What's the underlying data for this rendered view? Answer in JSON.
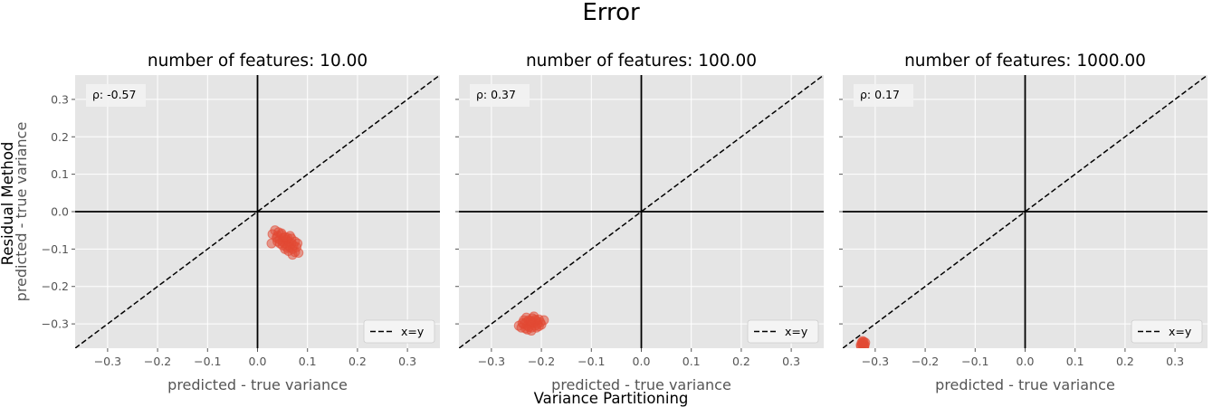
{
  "figure": {
    "title": "Error",
    "supxlabel": "Variance Partitioning",
    "supylabel": "Residual Method"
  },
  "chart_data": [
    {
      "type": "scatter",
      "title": "number of features: 10.00",
      "xlabel": "predicted - true variance",
      "ylabel": "predicted - true variance",
      "xlim": [
        -0.365,
        0.365
      ],
      "ylim": [
        -0.365,
        0.365
      ],
      "xticks": [
        -0.3,
        -0.2,
        -0.1,
        0.0,
        0.1,
        0.2,
        0.3
      ],
      "yticks": [
        -0.3,
        -0.2,
        -0.1,
        0.0,
        0.1,
        0.2,
        0.3
      ],
      "xtick_labels": [
        "−0.3",
        "−0.2",
        "−0.1",
        "0.0",
        "0.1",
        "0.2",
        "0.3"
      ],
      "ytick_labels": [
        "−0.3",
        "−0.2",
        "−0.1",
        "0.0",
        "0.1",
        "0.2",
        "0.3"
      ],
      "annotation": "ρ: -0.57",
      "legend": [
        "x=y"
      ],
      "legend_position": "lower-right",
      "grid": true,
      "point_color": "#E24A33",
      "points": [
        [
          0.03,
          -0.06
        ],
        [
          0.035,
          -0.05
        ],
        [
          0.038,
          -0.07
        ],
        [
          0.04,
          -0.065
        ],
        [
          0.042,
          -0.055
        ],
        [
          0.045,
          -0.075
        ],
        [
          0.048,
          -0.062
        ],
        [
          0.05,
          -0.08
        ],
        [
          0.052,
          -0.07
        ],
        [
          0.055,
          -0.085
        ],
        [
          0.058,
          -0.075
        ],
        [
          0.06,
          -0.09
        ],
        [
          0.062,
          -0.08
        ],
        [
          0.065,
          -0.095
        ],
        [
          0.068,
          -0.085
        ],
        [
          0.07,
          -0.1
        ],
        [
          0.072,
          -0.09
        ],
        [
          0.075,
          -0.08
        ],
        [
          0.078,
          -0.095
        ],
        [
          0.08,
          -0.085
        ],
        [
          0.07,
          -0.115
        ],
        [
          0.075,
          -0.108
        ],
        [
          0.055,
          -0.1
        ],
        [
          0.05,
          -0.09
        ],
        [
          0.045,
          -0.085
        ],
        [
          0.04,
          -0.08
        ],
        [
          0.06,
          -0.07
        ],
        [
          0.065,
          -0.065
        ],
        [
          0.048,
          -0.058
        ],
        [
          0.055,
          -0.068
        ],
        [
          0.062,
          -0.105
        ],
        [
          0.082,
          -0.11
        ],
        [
          0.028,
          -0.085
        ],
        [
          0.058,
          -0.095
        ],
        [
          0.068,
          -0.072
        ]
      ]
    },
    {
      "type": "scatter",
      "title": "number of features: 100.00",
      "xlabel": "predicted - true variance",
      "xlim": [
        -0.365,
        0.365
      ],
      "ylim": [
        -0.365,
        0.365
      ],
      "xticks": [
        -0.3,
        -0.2,
        -0.1,
        0.0,
        0.1,
        0.2,
        0.3
      ],
      "yticks": [
        -0.3,
        -0.2,
        -0.1,
        0.0,
        0.1,
        0.2,
        0.3
      ],
      "xtick_labels": [
        "−0.3",
        "−0.2",
        "−0.1",
        "0.0",
        "0.1",
        "0.2",
        "0.3"
      ],
      "annotation": "ρ: 0.37",
      "legend": [
        "x=y"
      ],
      "legend_position": "lower-right",
      "grid": true,
      "point_color": "#E24A33",
      "points": [
        [
          -0.245,
          -0.305
        ],
        [
          -0.24,
          -0.31
        ],
        [
          -0.235,
          -0.3
        ],
        [
          -0.232,
          -0.312
        ],
        [
          -0.23,
          -0.295
        ],
        [
          -0.228,
          -0.305
        ],
        [
          -0.225,
          -0.29
        ],
        [
          -0.222,
          -0.3
        ],
        [
          -0.22,
          -0.31
        ],
        [
          -0.218,
          -0.285
        ],
        [
          -0.215,
          -0.298
        ],
        [
          -0.212,
          -0.305
        ],
        [
          -0.21,
          -0.292
        ],
        [
          -0.208,
          -0.3
        ],
        [
          -0.205,
          -0.288
        ],
        [
          -0.202,
          -0.296
        ],
        [
          -0.2,
          -0.302
        ],
        [
          -0.195,
          -0.29
        ],
        [
          -0.228,
          -0.315
        ],
        [
          -0.22,
          -0.318
        ],
        [
          -0.235,
          -0.29
        ],
        [
          -0.215,
          -0.28
        ],
        [
          -0.225,
          -0.308
        ],
        [
          -0.21,
          -0.31
        ],
        [
          -0.238,
          -0.298
        ],
        [
          -0.218,
          -0.296
        ],
        [
          -0.205,
          -0.306
        ],
        [
          -0.23,
          -0.283
        ],
        [
          -0.212,
          -0.289
        ],
        [
          -0.222,
          -0.292
        ]
      ]
    },
    {
      "type": "scatter",
      "title": "number of features: 1000.00",
      "xlabel": "predicted - true variance",
      "xlim": [
        -0.365,
        0.365
      ],
      "ylim": [
        -0.365,
        0.365
      ],
      "xticks": [
        -0.3,
        -0.2,
        -0.1,
        0.0,
        0.1,
        0.2,
        0.3
      ],
      "yticks": [
        -0.3,
        -0.2,
        -0.1,
        0.0,
        0.1,
        0.2,
        0.3
      ],
      "xtick_labels": [
        "−0.3",
        "−0.2",
        "−0.1",
        "0.0",
        "0.1",
        "0.2",
        "0.3"
      ],
      "annotation": "ρ: 0.17",
      "legend": [
        "x=y"
      ],
      "legend_position": "lower-right",
      "grid": true,
      "point_color": "#E24A33",
      "points": [
        [
          -0.325,
          -0.352
        ],
        [
          -0.322,
          -0.358
        ],
        [
          -0.328,
          -0.36
        ],
        [
          -0.32,
          -0.35
        ],
        [
          -0.326,
          -0.355
        ],
        [
          -0.324,
          -0.362
        ],
        [
          -0.321,
          -0.356
        ],
        [
          -0.327,
          -0.35
        ],
        [
          -0.323,
          -0.348
        ],
        [
          -0.329,
          -0.357
        ],
        [
          -0.322,
          -0.363
        ],
        [
          -0.325,
          -0.346
        ]
      ]
    }
  ]
}
